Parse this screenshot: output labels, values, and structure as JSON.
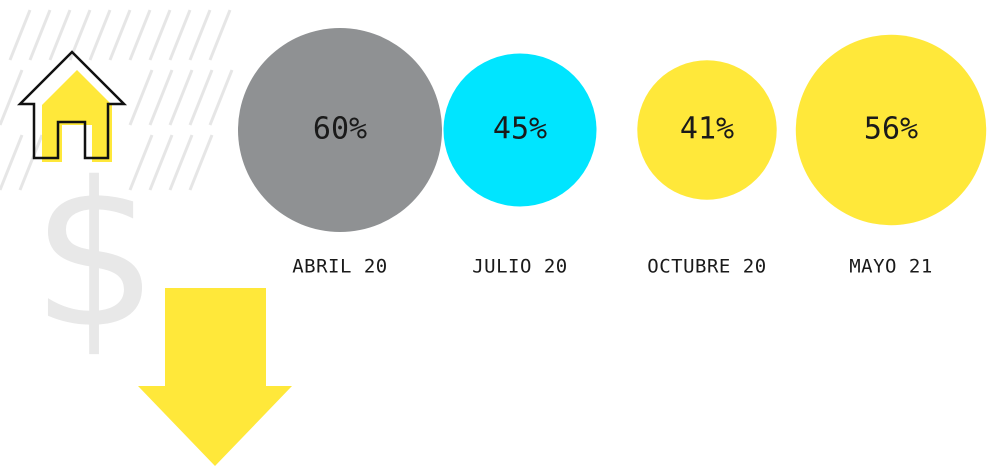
{
  "chart_data": {
    "type": "bubble",
    "categories": [
      "ABRIL 20",
      "JULIO 20",
      "OCTUBRE 20",
      "MAYO 21"
    ],
    "values": [
      60,
      45,
      41,
      56
    ],
    "value_labels": [
      "60%",
      "45%",
      "41%",
      "56%"
    ],
    "colors": [
      "#8f9193",
      "#00e5ff",
      "#ffe83a",
      "#ffe83a"
    ]
  }
}
